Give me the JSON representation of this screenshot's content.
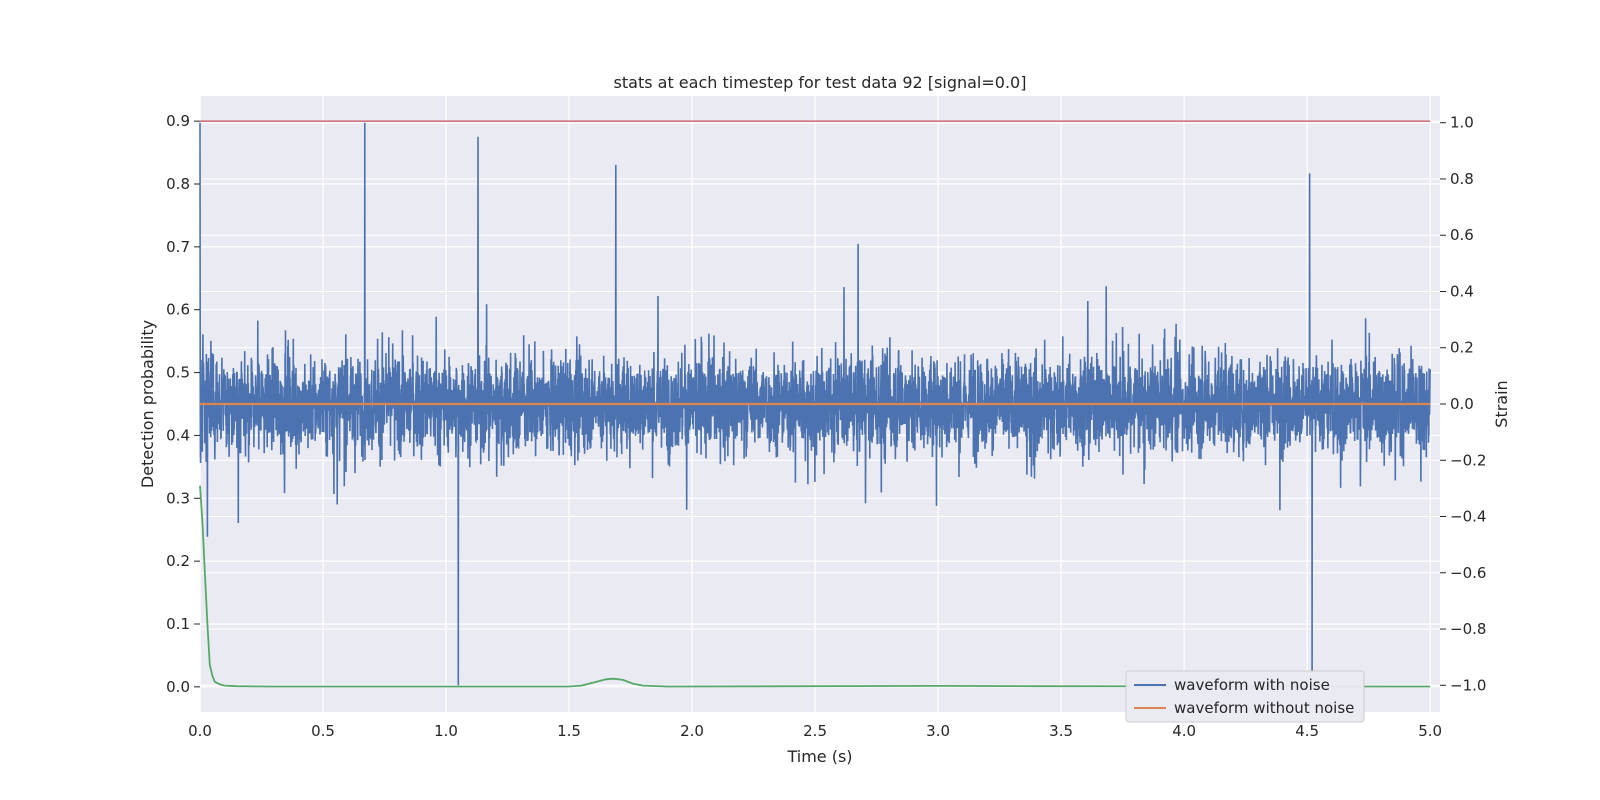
{
  "chart_data": {
    "type": "line",
    "title": "stats at each timestep for test data 92 [signal=0.0]",
    "xlabel": "Time (s)",
    "ylabel_left": "Detection probability",
    "ylabel_right": "Strain",
    "xlim": [
      0.0,
      5.04
    ],
    "ylim_left": [
      -0.04,
      0.94
    ],
    "ylim_right": [
      -1.095,
      1.095
    ],
    "xticks": [
      0.0,
      0.5,
      1.0,
      1.5,
      2.0,
      2.5,
      3.0,
      3.5,
      4.0,
      4.5,
      5.0
    ],
    "xtick_labels": [
      "0.0",
      "0.5",
      "1.0",
      "1.5",
      "2.0",
      "2.5",
      "3.0",
      "3.5",
      "4.0",
      "4.5",
      "5.0"
    ],
    "yticks_left": [
      0.0,
      0.1,
      0.2,
      0.3,
      0.4,
      0.5,
      0.6,
      0.7,
      0.8,
      0.9
    ],
    "ytick_labels_left": [
      "0.0",
      "0.1",
      "0.2",
      "0.3",
      "0.4",
      "0.5",
      "0.6",
      "0.7",
      "0.8",
      "0.9"
    ],
    "yticks_right": [
      -1.0,
      -0.8,
      -0.6,
      -0.4,
      -0.2,
      0.0,
      0.2,
      0.4,
      0.6,
      0.8,
      1.0
    ],
    "ytick_labels_right": [
      "−1.0",
      "−0.8",
      "−0.6",
      "−0.4",
      "−0.2",
      "0.0",
      "0.2",
      "0.4",
      "0.6",
      "0.8",
      "1.0"
    ],
    "grid": true,
    "legend_position": "lower-right",
    "colors": {
      "noise": "#4c72b0",
      "clean": "#dd8452",
      "prob": "#55a868",
      "threshold": "#c44e52",
      "background": "#eaeaf2",
      "grid": "#ffffff"
    },
    "series": [
      {
        "name": "waveform with noise",
        "axis": "right",
        "noise_amplitude_max": 1.0,
        "description_points": {
          "x": [
            0.0,
            0.67,
            1.05,
            1.13,
            1.69,
            4.51,
            4.52
          ],
          "y": [
            1.0,
            1.0,
            -1.0,
            0.95,
            0.85,
            0.82,
            -0.95
          ]
        }
      },
      {
        "name": "waveform without noise",
        "axis": "right",
        "x": [
          0.0,
          5.0
        ],
        "y": [
          0.0,
          0.0
        ]
      },
      {
        "axis": "left",
        "x": [
          0.0,
          0.01,
          0.02,
          0.03,
          0.04,
          0.05,
          0.06,
          0.08,
          0.1,
          0.15,
          0.3,
          1.5,
          1.55,
          1.6,
          1.65,
          1.68,
          1.72,
          1.76,
          1.8,
          1.9,
          3.0,
          3.4,
          5.0
        ],
        "y": [
          0.32,
          0.26,
          0.18,
          0.1,
          0.035,
          0.018,
          0.008,
          0.004,
          0.002,
          0.001,
          0.0005,
          0.0005,
          0.002,
          0.007,
          0.012,
          0.013,
          0.011,
          0.005,
          0.002,
          0.0005,
          0.0015,
          0.001,
          0.0005
        ]
      },
      {
        "axis": "left",
        "x": [
          0.0,
          5.0
        ],
        "y": [
          0.9,
          0.9
        ]
      }
    ],
    "legend": [
      "waveform with noise",
      "waveform without noise"
    ]
  }
}
